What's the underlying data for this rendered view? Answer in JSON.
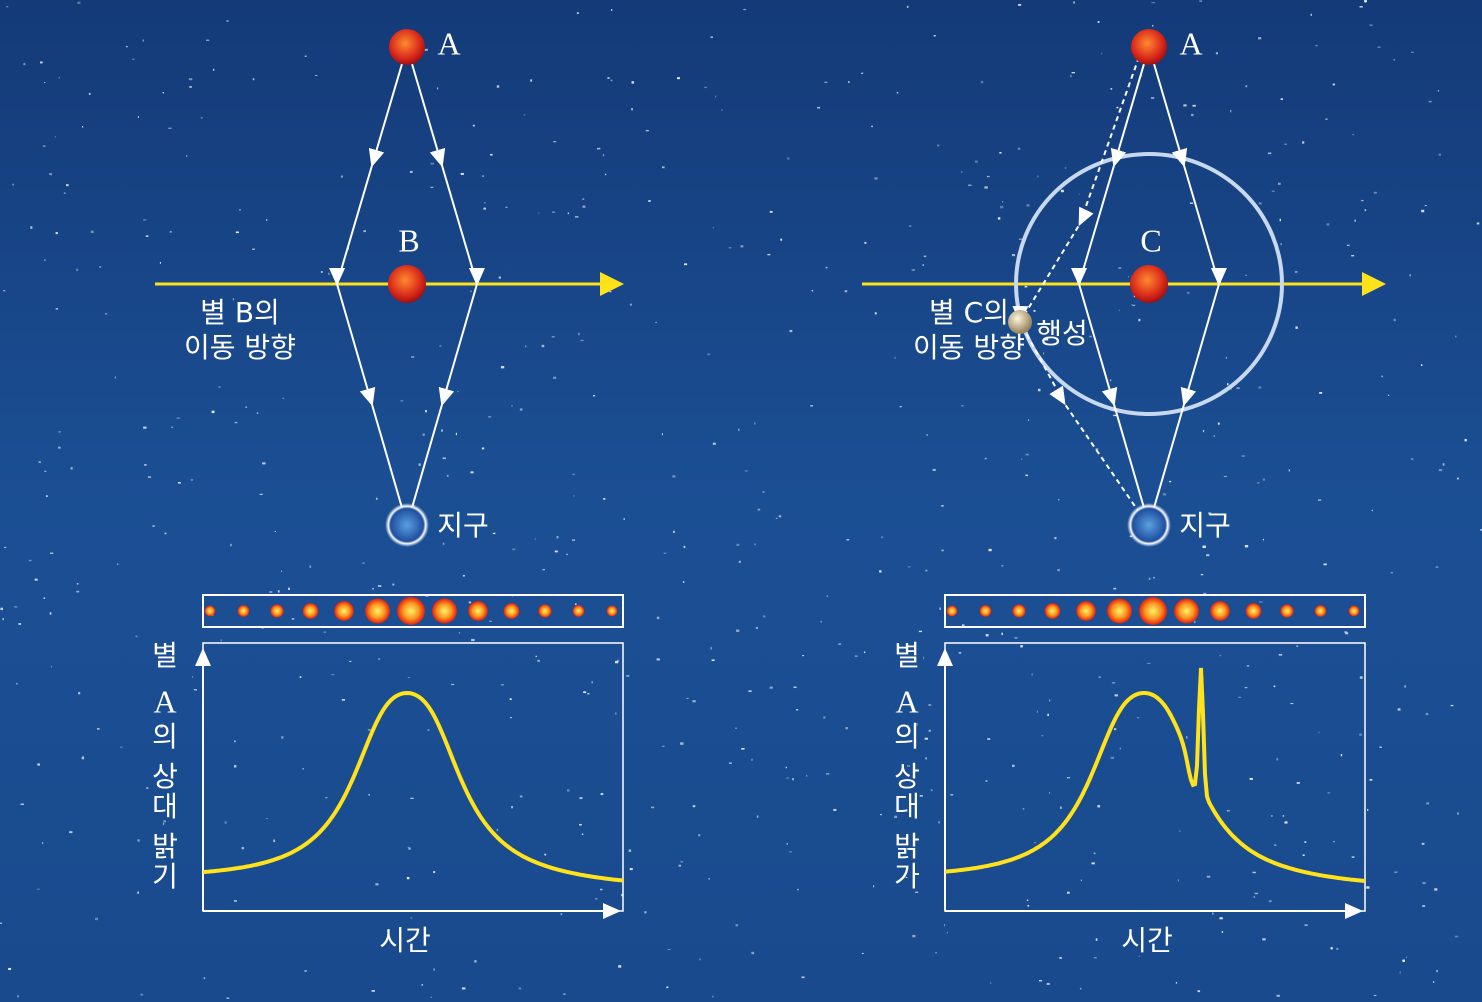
{
  "panels": [
    {
      "source": "A",
      "lens": "B",
      "motion_label": [
        "별 B의",
        "이동 방향"
      ],
      "observer": "지구",
      "y_label": [
        "별",
        "A",
        "의",
        "상",
        "대",
        "밝",
        "기"
      ],
      "x_label": "시간"
    },
    {
      "source": "A",
      "lens": "C",
      "planet": "행성",
      "motion_label": [
        "별 C의",
        "이동 방향"
      ],
      "observer": "지구",
      "y_label": [
        "별",
        "A",
        "의",
        "상",
        "대",
        "밝",
        "가"
      ],
      "x_label": "시간"
    }
  ]
}
